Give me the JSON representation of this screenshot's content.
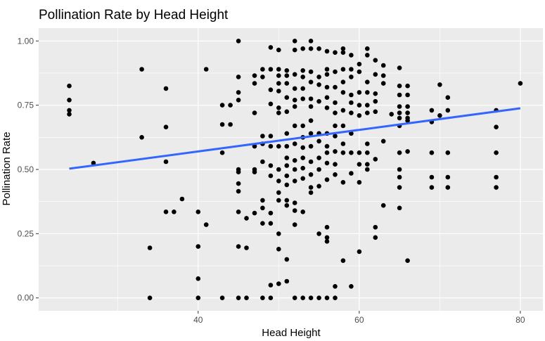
{
  "chart_data": {
    "type": "scatter",
    "title": "Pollination Rate by Head Height",
    "xlabel": "Head Height",
    "ylabel": "Pollination Rate",
    "xlim": [
      20.2,
      82.8
    ],
    "ylim": [
      -0.05,
      1.05
    ],
    "x_ticks": [
      40,
      60,
      80
    ],
    "x_minor": [
      30,
      50,
      70
    ],
    "y_ticks": [
      0.0,
      0.25,
      0.5,
      0.75,
      1.0
    ],
    "y_tick_labels": [
      "0.00",
      "0.25",
      "0.50",
      "0.75",
      "1.00"
    ],
    "grid": true,
    "background_color": "#ebebeb",
    "grid_color": "#ffffff",
    "point_color": "#000000",
    "trend_color": "#3366ff",
    "trend_line": {
      "x": [
        24,
        80
      ],
      "y": [
        0.503,
        0.738
      ]
    },
    "points": [
      [
        24,
        0.825
      ],
      [
        24,
        0.77
      ],
      [
        24,
        0.73
      ],
      [
        24,
        0.715
      ],
      [
        27,
        0.525
      ],
      [
        33,
        0.89
      ],
      [
        33,
        0.625
      ],
      [
        34,
        0.195
      ],
      [
        34,
        0.0
      ],
      [
        36,
        0.815
      ],
      [
        36,
        0.665
      ],
      [
        36,
        0.53
      ],
      [
        36,
        0.335
      ],
      [
        37,
        0.335
      ],
      [
        38,
        0.385
      ],
      [
        40,
        0.335
      ],
      [
        40,
        0.2
      ],
      [
        40,
        0.075
      ],
      [
        40,
        0.0
      ],
      [
        41,
        0.89
      ],
      [
        41,
        0.285
      ],
      [
        43,
        0.75
      ],
      [
        43,
        0.675
      ],
      [
        43,
        0.565
      ],
      [
        43,
        0.0
      ],
      [
        44,
        0.75
      ],
      [
        44,
        0.675
      ],
      [
        45,
        1.0
      ],
      [
        45,
        0.86
      ],
      [
        45,
        0.8
      ],
      [
        45,
        0.77
      ],
      [
        45,
        0.5
      ],
      [
        45,
        0.49
      ],
      [
        45,
        0.445
      ],
      [
        45,
        0.415
      ],
      [
        45,
        0.335
      ],
      [
        45,
        0.2
      ],
      [
        45,
        0.0
      ],
      [
        46,
        0.31
      ],
      [
        46,
        0.195
      ],
      [
        46,
        0.0
      ],
      [
        47,
        0.865
      ],
      [
        47,
        0.835
      ],
      [
        47,
        0.72
      ],
      [
        47,
        0.59
      ],
      [
        47,
        0.5
      ],
      [
        47,
        0.49
      ],
      [
        47,
        0.33
      ],
      [
        48,
        0.89
      ],
      [
        48,
        0.86
      ],
      [
        48,
        0.63
      ],
      [
        48,
        0.6
      ],
      [
        48,
        0.53
      ],
      [
        48,
        0.38
      ],
      [
        48,
        0.35
      ],
      [
        48,
        0.29
      ],
      [
        48,
        0.0
      ],
      [
        49,
        0.975
      ],
      [
        49,
        0.89
      ],
      [
        49,
        0.81
      ],
      [
        49,
        0.755
      ],
      [
        49,
        0.63
      ],
      [
        49,
        0.59
      ],
      [
        49,
        0.515
      ],
      [
        49,
        0.475
      ],
      [
        49,
        0.33
      ],
      [
        49,
        0.29
      ],
      [
        49,
        0.05
      ],
      [
        49,
        0.0
      ],
      [
        50,
        0.965
      ],
      [
        50,
        0.89
      ],
      [
        50,
        0.865
      ],
      [
        50,
        0.835
      ],
      [
        50,
        0.805
      ],
      [
        50,
        0.74
      ],
      [
        50,
        0.72
      ],
      [
        50,
        0.59
      ],
      [
        50,
        0.5
      ],
      [
        50,
        0.455
      ],
      [
        50,
        0.41
      ],
      [
        50,
        0.38
      ],
      [
        50,
        0.25
      ],
      [
        50,
        0.19
      ],
      [
        50,
        0.055
      ],
      [
        51,
        0.885
      ],
      [
        51,
        0.865
      ],
      [
        51,
        0.835
      ],
      [
        51,
        0.78
      ],
      [
        51,
        0.725
      ],
      [
        51,
        0.64
      ],
      [
        51,
        0.59
      ],
      [
        51,
        0.545
      ],
      [
        51,
        0.515
      ],
      [
        51,
        0.475
      ],
      [
        51,
        0.44
      ],
      [
        51,
        0.38
      ],
      [
        51,
        0.36
      ],
      [
        51,
        0.15
      ],
      [
        51,
        0.065
      ],
      [
        52,
        1.0
      ],
      [
        52,
        0.965
      ],
      [
        52,
        0.87
      ],
      [
        52,
        0.815
      ],
      [
        52,
        0.77
      ],
      [
        52,
        0.745
      ],
      [
        52,
        0.67
      ],
      [
        52,
        0.6
      ],
      [
        52,
        0.535
      ],
      [
        52,
        0.5
      ],
      [
        52,
        0.455
      ],
      [
        52,
        0.37
      ],
      [
        52,
        0.34
      ],
      [
        52,
        0.285
      ],
      [
        52,
        0.0
      ],
      [
        53,
        0.97
      ],
      [
        53,
        0.885
      ],
      [
        53,
        0.86
      ],
      [
        53,
        0.815
      ],
      [
        53,
        0.775
      ],
      [
        53,
        0.67
      ],
      [
        53,
        0.625
      ],
      [
        53,
        0.585
      ],
      [
        53,
        0.545
      ],
      [
        53,
        0.505
      ],
      [
        53,
        0.465
      ],
      [
        53,
        0.335
      ],
      [
        53,
        0.0
      ],
      [
        54,
        1.0
      ],
      [
        54,
        0.97
      ],
      [
        54,
        0.88
      ],
      [
        54,
        0.84
      ],
      [
        54,
        0.775
      ],
      [
        54,
        0.745
      ],
      [
        54,
        0.69
      ],
      [
        54,
        0.64
      ],
      [
        54,
        0.59
      ],
      [
        54,
        0.53
      ],
      [
        54,
        0.48
      ],
      [
        54,
        0.43
      ],
      [
        54,
        0.41
      ],
      [
        54,
        0.0
      ],
      [
        55,
        0.97
      ],
      [
        55,
        0.86
      ],
      [
        55,
        0.83
      ],
      [
        55,
        0.765
      ],
      [
        55,
        0.64
      ],
      [
        55,
        0.61
      ],
      [
        55,
        0.545
      ],
      [
        55,
        0.5
      ],
      [
        55,
        0.435
      ],
      [
        55,
        0.25
      ],
      [
        55,
        0.0
      ],
      [
        56,
        0.96
      ],
      [
        56,
        0.89
      ],
      [
        56,
        0.87
      ],
      [
        56,
        0.82
      ],
      [
        56,
        0.78
      ],
      [
        56,
        0.74
      ],
      [
        56,
        0.64
      ],
      [
        56,
        0.59
      ],
      [
        56,
        0.565
      ],
      [
        56,
        0.525
      ],
      [
        56,
        0.46
      ],
      [
        56,
        0.275
      ],
      [
        56,
        0.235
      ],
      [
        56,
        0.22
      ],
      [
        56,
        0.0
      ],
      [
        57,
        0.955
      ],
      [
        57,
        0.88
      ],
      [
        57,
        0.82
      ],
      [
        57,
        0.76
      ],
      [
        57,
        0.72
      ],
      [
        57,
        0.67
      ],
      [
        57,
        0.63
      ],
      [
        57,
        0.57
      ],
      [
        57,
        0.52
      ],
      [
        57,
        0.48
      ],
      [
        57,
        0.045
      ],
      [
        57,
        0.0
      ],
      [
        58,
        0.97
      ],
      [
        58,
        0.955
      ],
      [
        58,
        0.89
      ],
      [
        58,
        0.84
      ],
      [
        58,
        0.8
      ],
      [
        58,
        0.73
      ],
      [
        58,
        0.67
      ],
      [
        58,
        0.6
      ],
      [
        58,
        0.565
      ],
      [
        58,
        0.45
      ],
      [
        58,
        0.145
      ],
      [
        59,
        0.945
      ],
      [
        59,
        0.89
      ],
      [
        59,
        0.86
      ],
      [
        59,
        0.79
      ],
      [
        59,
        0.76
      ],
      [
        59,
        0.72
      ],
      [
        59,
        0.64
      ],
      [
        59,
        0.565
      ],
      [
        59,
        0.485
      ],
      [
        59,
        0.045
      ],
      [
        60,
        0.91
      ],
      [
        60,
        0.88
      ],
      [
        60,
        0.8
      ],
      [
        60,
        0.75
      ],
      [
        60,
        0.71
      ],
      [
        60,
        0.565
      ],
      [
        60,
        0.52
      ],
      [
        60,
        0.45
      ],
      [
        60,
        0.18
      ],
      [
        61,
        0.97
      ],
      [
        61,
        0.945
      ],
      [
        61,
        0.84
      ],
      [
        61,
        0.8
      ],
      [
        61,
        0.75
      ],
      [
        61,
        0.72
      ],
      [
        61,
        0.6
      ],
      [
        61,
        0.565
      ],
      [
        61,
        0.52
      ],
      [
        61,
        0.5
      ],
      [
        62,
        0.925
      ],
      [
        62,
        0.87
      ],
      [
        62,
        0.795
      ],
      [
        62,
        0.765
      ],
      [
        62,
        0.725
      ],
      [
        62,
        0.54
      ],
      [
        62,
        0.275
      ],
      [
        62,
        0.235
      ],
      [
        63,
        0.905
      ],
      [
        63,
        0.865
      ],
      [
        63,
        0.835
      ],
      [
        63,
        0.61
      ],
      [
        63,
        0.36
      ],
      [
        64,
        0.715
      ],
      [
        65,
        0.895
      ],
      [
        65,
        0.825
      ],
      [
        65,
        0.79
      ],
      [
        65,
        0.745
      ],
      [
        65,
        0.72
      ],
      [
        65,
        0.7
      ],
      [
        65,
        0.67
      ],
      [
        65,
        0.565
      ],
      [
        65,
        0.5
      ],
      [
        65,
        0.47
      ],
      [
        65,
        0.43
      ],
      [
        65,
        0.35
      ],
      [
        66,
        0.825
      ],
      [
        66,
        0.79
      ],
      [
        66,
        0.745
      ],
      [
        66,
        0.72
      ],
      [
        66,
        0.7
      ],
      [
        66,
        0.69
      ],
      [
        66,
        0.57
      ],
      [
        66,
        0.145
      ],
      [
        69,
        0.73
      ],
      [
        69,
        0.685
      ],
      [
        69,
        0.565
      ],
      [
        69,
        0.47
      ],
      [
        69,
        0.43
      ],
      [
        70,
        0.83
      ],
      [
        70,
        0.71
      ],
      [
        71,
        0.78
      ],
      [
        71,
        0.73
      ],
      [
        71,
        0.565
      ],
      [
        71,
        0.47
      ],
      [
        71,
        0.43
      ],
      [
        77,
        0.73
      ],
      [
        77,
        0.665
      ],
      [
        77,
        0.565
      ],
      [
        77,
        0.47
      ],
      [
        77,
        0.43
      ],
      [
        80,
        0.835
      ]
    ]
  }
}
